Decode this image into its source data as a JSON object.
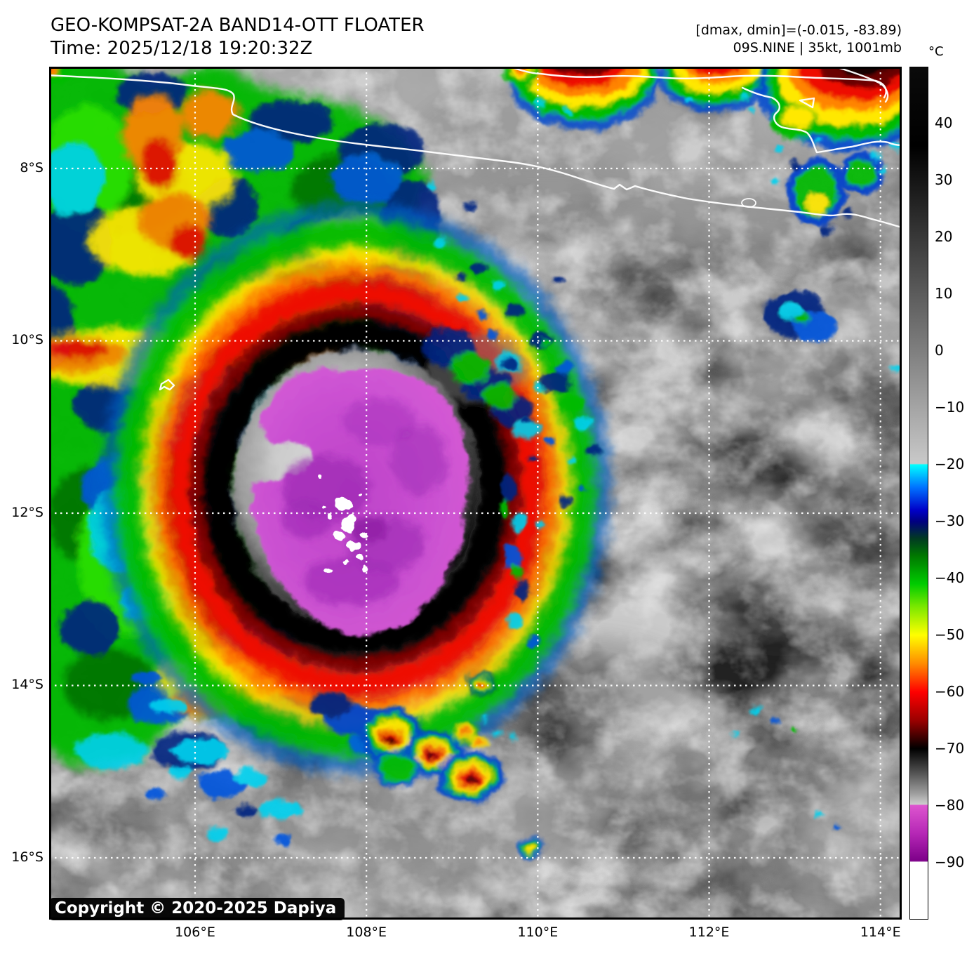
{
  "header": {
    "title": "GEO-KOMPSAT-2A BAND14-OTT FLOATER",
    "time": "Time: 2025/12/18 19:20:32Z",
    "dmax_dmin": "[dmax, dmin]=(-0.015, -83.89)",
    "storm_info": "09S.NINE | 35kt, 1001mb"
  },
  "map": {
    "copyright": "Copyright © 2020-2025 Dapiya",
    "lat_domain": [
      6.819,
      16.717
    ],
    "lon_domain": [
      104.2965,
      114.248
    ],
    "lat_ticks": [
      {
        "label": "8°S",
        "value": 8
      },
      {
        "label": "10°S",
        "value": 10
      },
      {
        "label": "12°S",
        "value": 12
      },
      {
        "label": "14°S",
        "value": 14
      },
      {
        "label": "16°S",
        "value": 16
      }
    ],
    "lon_ticks": [
      {
        "label": "106°E",
        "value": 106
      },
      {
        "label": "108°E",
        "value": 108
      },
      {
        "label": "110°E",
        "value": 110
      },
      {
        "label": "112°E",
        "value": 112
      },
      {
        "label": "114°E",
        "value": 114
      }
    ],
    "grid_color": "#ffffff",
    "coastline_color": "#ffffff"
  },
  "colorbar": {
    "unit": "°C",
    "domain": [
      50,
      -100
    ],
    "ticks": [
      {
        "label": "40",
        "value": 40
      },
      {
        "label": "30",
        "value": 30
      },
      {
        "label": "20",
        "value": 20
      },
      {
        "label": "10",
        "value": 10
      },
      {
        "label": "0",
        "value": 0
      },
      {
        "label": "−10",
        "value": -10
      },
      {
        "label": "−20",
        "value": -20
      },
      {
        "label": "−30",
        "value": -30
      },
      {
        "label": "−40",
        "value": -40
      },
      {
        "label": "−50",
        "value": -50
      },
      {
        "label": "−60",
        "value": -60
      },
      {
        "label": "−70",
        "value": -70
      },
      {
        "label": "−80",
        "value": -80
      },
      {
        "label": "−90",
        "value": -90
      }
    ],
    "stops": [
      {
        "value": 50,
        "color": "#0a0a0a"
      },
      {
        "value": 36,
        "color": "#000000"
      },
      {
        "value": 0,
        "color": "#7f7f7f"
      },
      {
        "value": -19.8,
        "color": "#c9c9c9"
      },
      {
        "value": -20,
        "color": "#00ffff"
      },
      {
        "value": -24,
        "color": "#0072ff"
      },
      {
        "value": -28,
        "color": "#0000c8"
      },
      {
        "value": -30,
        "color": "#000080"
      },
      {
        "value": -33,
        "color": "#013a22"
      },
      {
        "value": -36,
        "color": "#007700"
      },
      {
        "value": -41,
        "color": "#00cc00"
      },
      {
        "value": -45,
        "color": "#7ae800"
      },
      {
        "value": -50,
        "color": "#ffff00"
      },
      {
        "value": -55,
        "color": "#ff8c00"
      },
      {
        "value": -60,
        "color": "#ff0000"
      },
      {
        "value": -65,
        "color": "#9b0000"
      },
      {
        "value": -70,
        "color": "#000000"
      },
      {
        "value": -74,
        "color": "#4d4d4d"
      },
      {
        "value": -78,
        "color": "#a0a0a0"
      },
      {
        "value": -79.8,
        "color": "#cdcdcd"
      },
      {
        "value": -80,
        "color": "#dd55cf"
      },
      {
        "value": -85,
        "color": "#b527b5"
      },
      {
        "value": -89.8,
        "color": "#7d0089"
      },
      {
        "value": -90,
        "color": "#ffffff"
      },
      {
        "value": -100,
        "color": "#ffffff"
      }
    ]
  }
}
